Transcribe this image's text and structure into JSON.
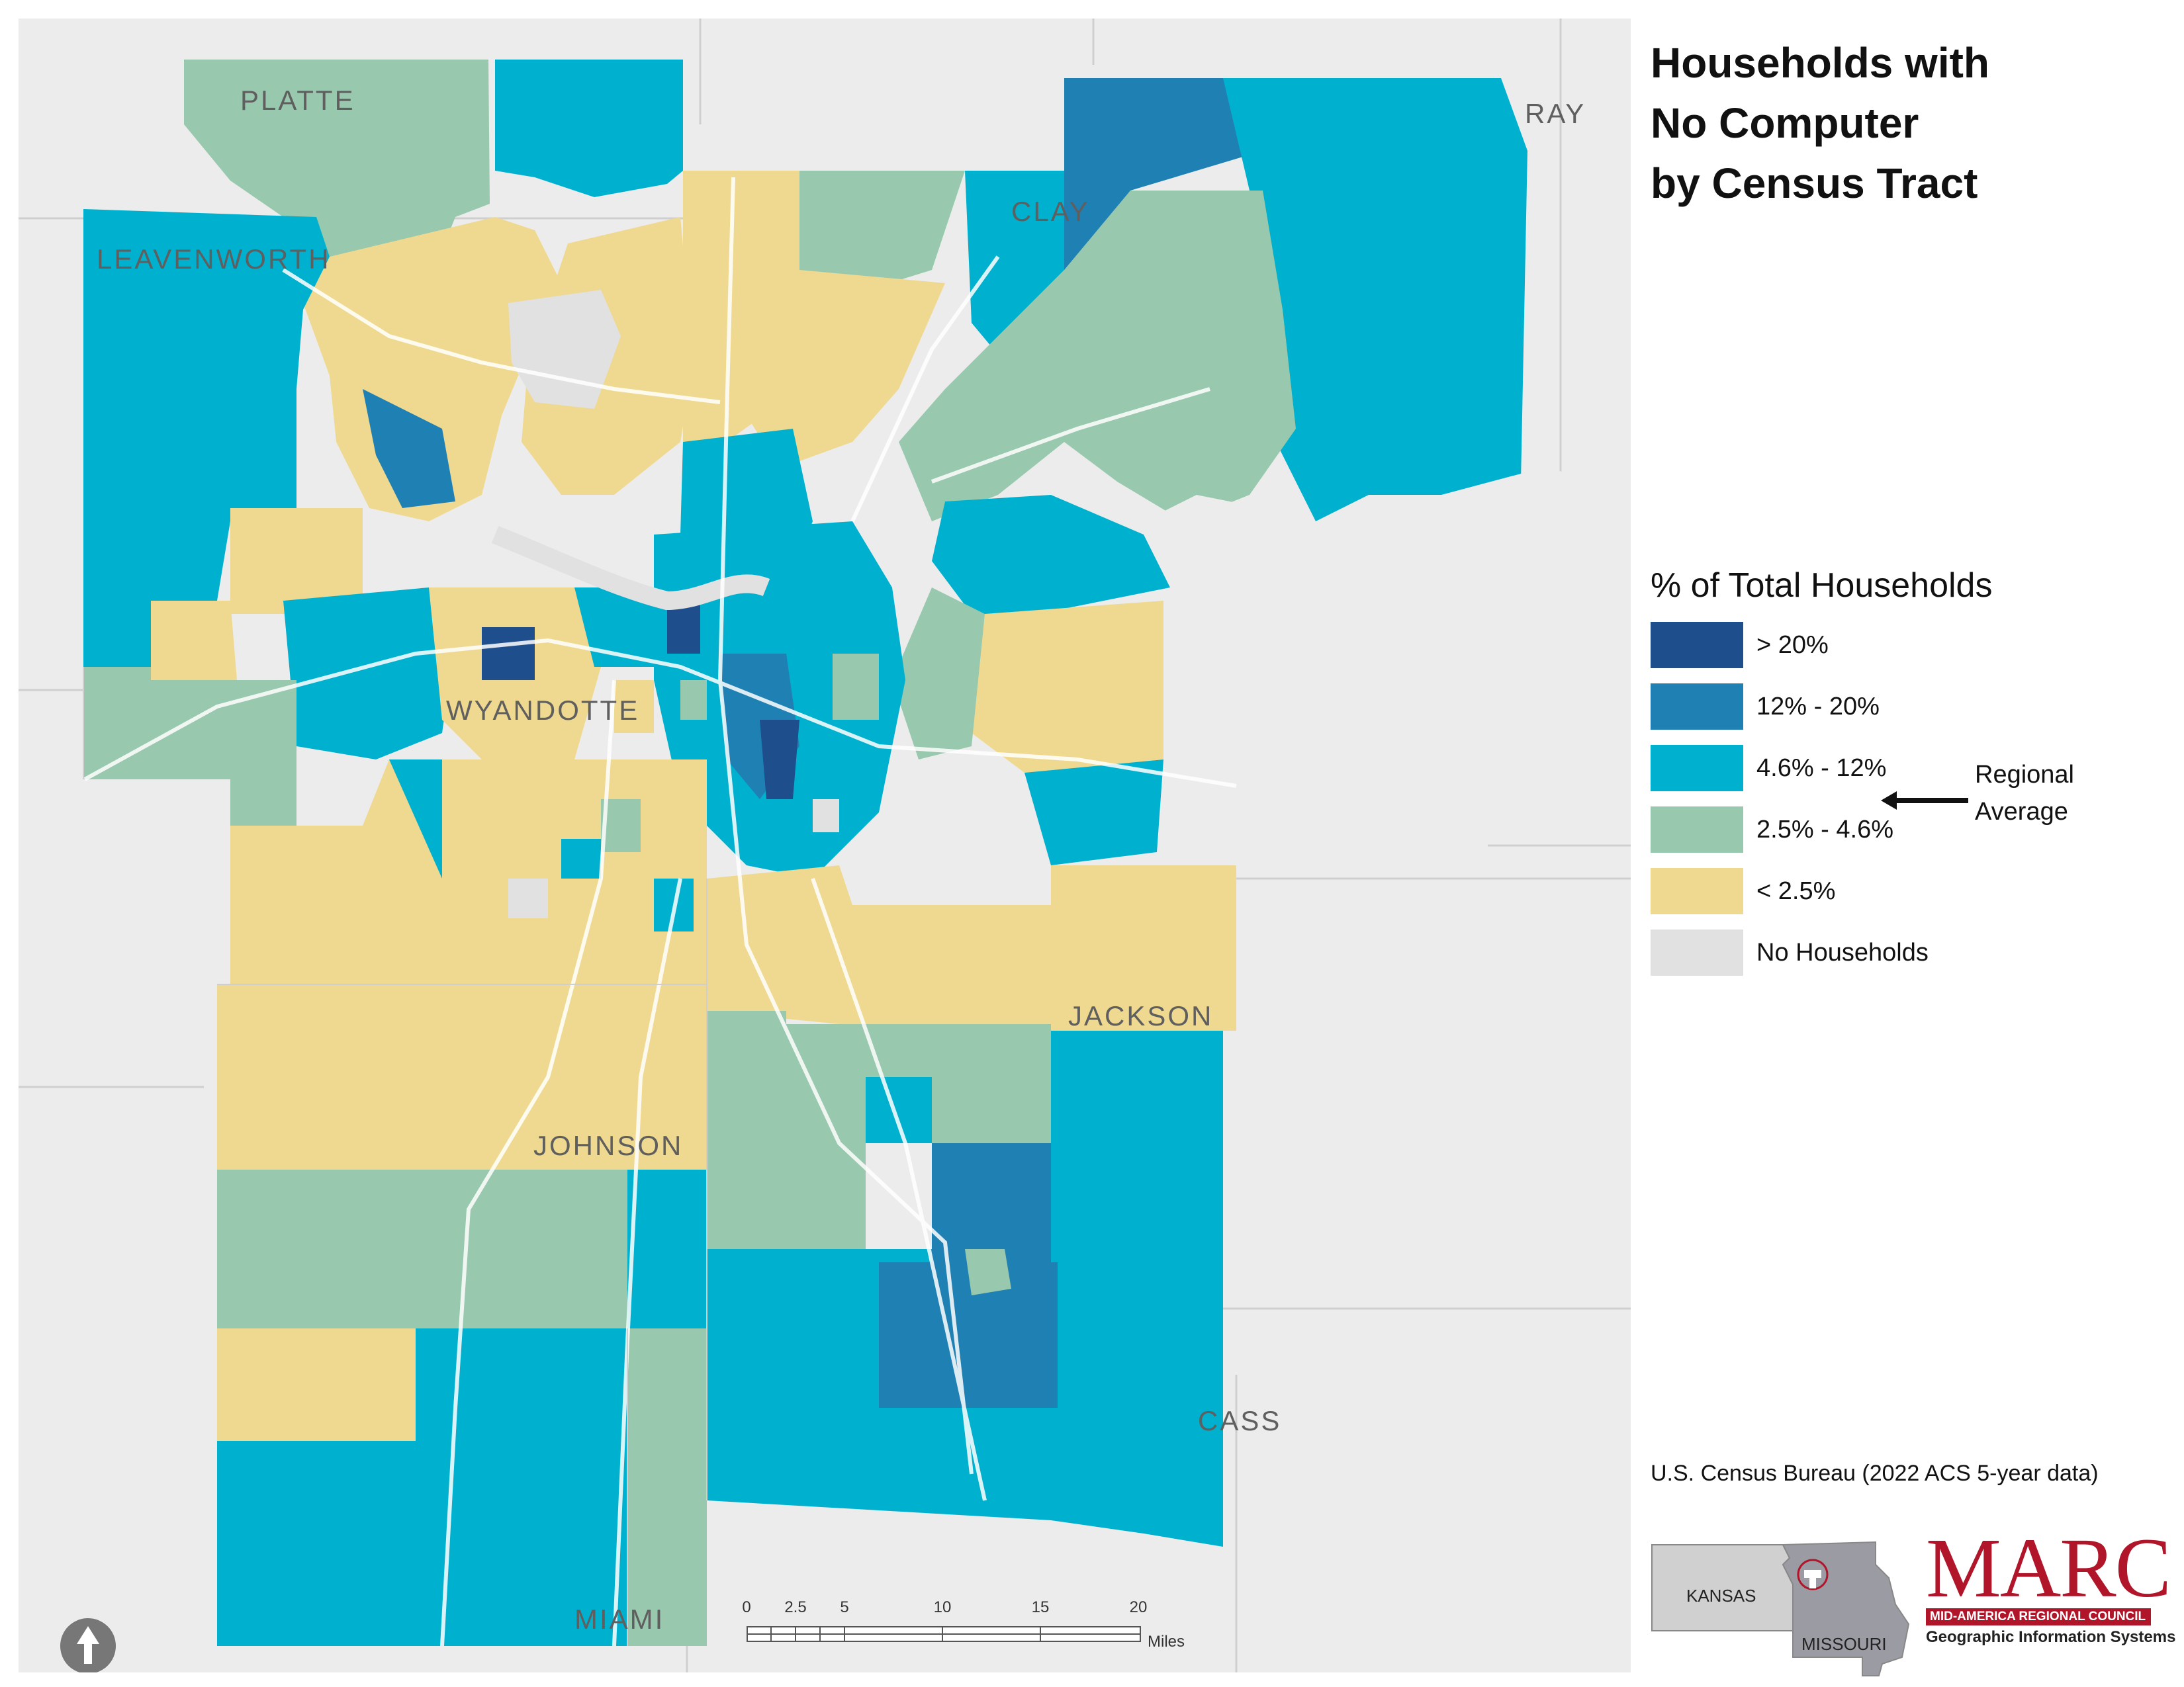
{
  "title": {
    "line1": "Households with",
    "line2": "No Computer",
    "line3": "by Census Tract"
  },
  "legend": {
    "title": "% of Total Households",
    "items": [
      {
        "label": "> 20%",
        "color": "#1f4e8c"
      },
      {
        "label": "12% - 20%",
        "color": "#1f80b4"
      },
      {
        "label": "4.6% - 12%",
        "color": "#00b1cf"
      },
      {
        "label": "2.5% - 4.6%",
        "color": "#98c8ad"
      },
      {
        "label": "< 2.5%",
        "color": "#efd990"
      },
      {
        "label": "No Households",
        "color": "#e1e1e1"
      }
    ],
    "regional_average_note": "Regional Average"
  },
  "counties": {
    "platte": "PLATTE",
    "clay": "CLAY",
    "ray": "RAY",
    "leavenworth": "LEAVENWORTH",
    "wyandotte": "WYANDOTTE",
    "jackson": "JACKSON",
    "johnson": "JOHNSON",
    "cass": "CASS",
    "miami": "MIAMI"
  },
  "source": "U.S. Census Bureau (2022 ACS 5-year data)",
  "locator": {
    "kansas": "KANSAS",
    "missouri": "MISSOURI"
  },
  "logo": {
    "name": "MARC",
    "band": "MID-AMERICA REGIONAL COUNCIL",
    "subtitle": "Geographic Information Systems"
  },
  "scale": {
    "ticks": [
      "0",
      "2.5",
      "5",
      "10",
      "15",
      "20"
    ],
    "unit": "Miles"
  },
  "colors": {
    "background": "#ececec",
    "roads": "#ffffff",
    "county_borders": "#cfcfcf"
  }
}
